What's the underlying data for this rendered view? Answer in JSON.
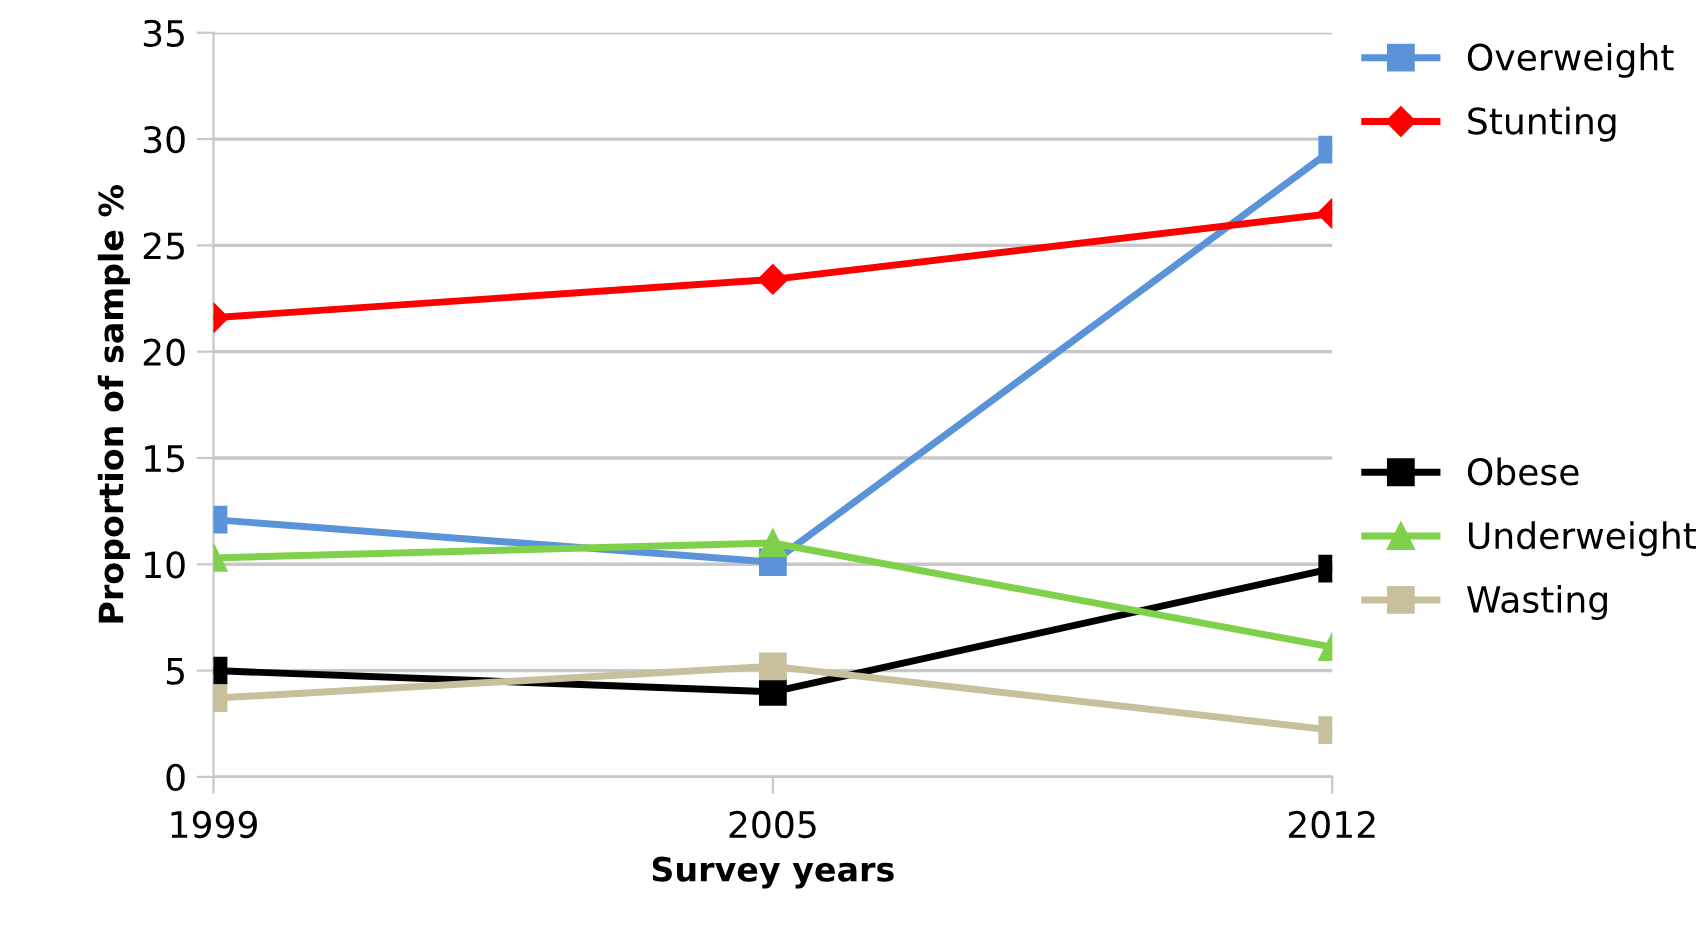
{
  "chart_data": {
    "type": "line",
    "xlabel": "Survey years",
    "ylabel": "Proportion of sample %",
    "categories": [
      "1999",
      "2005",
      "2012"
    ],
    "series": [
      {
        "name": "Overweight",
        "color": "#5b93d8",
        "marker": "square",
        "values": [
          12.1,
          10.1,
          29.5
        ]
      },
      {
        "name": "Stunting",
        "color": "#ff0000",
        "marker": "diamond",
        "values": [
          21.6,
          23.4,
          26.5
        ]
      },
      {
        "name": "Obese",
        "color": "#000000",
        "marker": "square",
        "values": [
          5.0,
          4.0,
          9.8
        ]
      },
      {
        "name": "Underweight",
        "color": "#7fd04a",
        "marker": "triangle",
        "values": [
          10.3,
          11.0,
          6.1
        ]
      },
      {
        "name": "Wasting",
        "color": "#c8bf9c",
        "marker": "square",
        "values": [
          3.7,
          5.2,
          2.2
        ]
      }
    ],
    "ylim": [
      0,
      35
    ],
    "yticks": [
      0,
      5,
      10,
      15,
      20,
      25,
      30,
      35
    ],
    "grid": "y",
    "legend": "right",
    "line_style": "solid"
  }
}
